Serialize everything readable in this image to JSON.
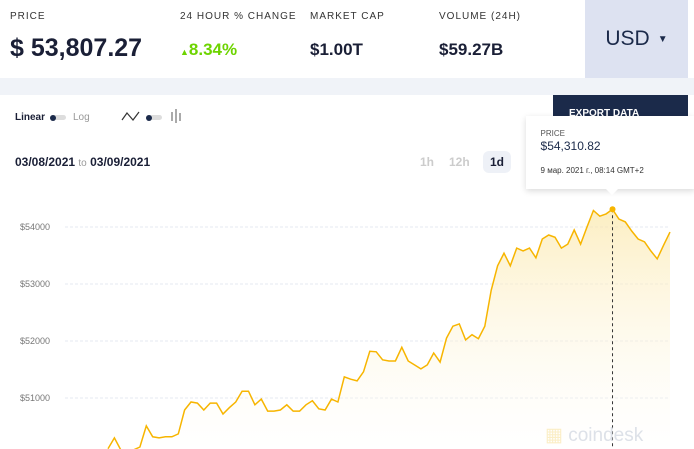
{
  "header": {
    "price_label": "PRICE",
    "price": "53,807.27",
    "currency_symbol": "$",
    "change_label": "24 HOUR % CHANGE",
    "change": "8.34%",
    "change_color": "#6dd400",
    "mcap_label": "MARKET CAP",
    "mcap": "$1.00T",
    "volume_label": "VOLUME (24H)",
    "volume": "$59.27B",
    "currency": "USD"
  },
  "controls": {
    "linear": "Linear",
    "log": "Log",
    "export": "EXPORT DATA",
    "date_from": "03/08/2021",
    "date_to_word": "to",
    "date_to": "03/09/2021",
    "ranges": [
      "1h",
      "12h",
      "1d"
    ],
    "active_range": "1d"
  },
  "tooltip": {
    "label": "PRICE",
    "value": "$54,310.82",
    "time": "9 мар. 2021 г., 08:14 GMT+2"
  },
  "watermark": "coindesk",
  "chart_data": {
    "type": "area",
    "line_color": "#f7b500",
    "yticks": [
      "$54000",
      "$53000",
      "$52000",
      "$51000"
    ],
    "ytick_values": [
      54000,
      53000,
      52000,
      51000
    ],
    "grid": true,
    "values": [
      50110,
      50300,
      50090,
      50070,
      50090,
      50140,
      50510,
      50320,
      50300,
      50320,
      50320,
      50370,
      50790,
      50930,
      50910,
      50790,
      50910,
      50910,
      50720,
      50830,
      50930,
      51120,
      51120,
      50880,
      50980,
      50770,
      50770,
      50790,
      50880,
      50770,
      50770,
      50880,
      50950,
      50810,
      50790,
      50980,
      50930,
      51370,
      51330,
      51300,
      51460,
      51820,
      51810,
      51670,
      51650,
      51650,
      51890,
      51650,
      51580,
      51510,
      51580,
      51790,
      51630,
      52050,
      52260,
      52300,
      52020,
      52110,
      52040,
      52260,
      52890,
      53320,
      53540,
      53320,
      53630,
      53580,
      53630,
      53460,
      53790,
      53860,
      53820,
      53630,
      53700,
      53950,
      53700,
      54000,
      54290,
      54190,
      54230,
      54310.82,
      54140,
      54090,
      53930,
      53790,
      53740,
      53580,
      53440,
      53680,
      53910
    ],
    "highlight_index": 79
  }
}
